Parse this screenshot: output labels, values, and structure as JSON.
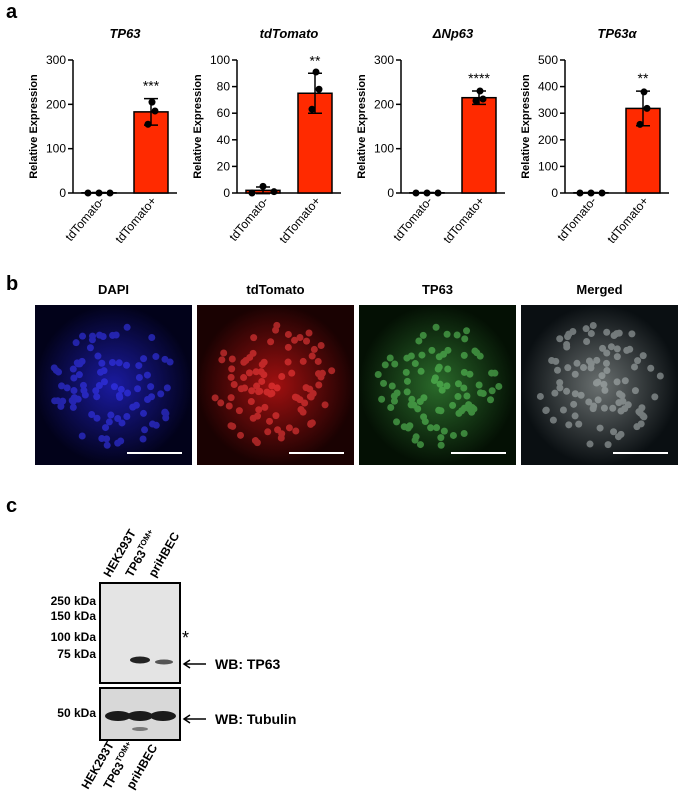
{
  "chart_data": [
    {
      "type": "bar",
      "title": "TP63",
      "ylabel": "Relative Expression",
      "categories": [
        "tdTomato-",
        "tdTomato+"
      ],
      "values": [
        0.5,
        183
      ],
      "errors": [
        0.5,
        30
      ],
      "points": [
        [
          0,
          0,
          0
        ],
        [
          205,
          185,
          155
        ]
      ],
      "annotation": "***",
      "color": "#ff2a00",
      "ylim": [
        0,
        300
      ],
      "yticks": [
        0,
        100,
        200,
        300
      ]
    },
    {
      "type": "bar",
      "title": "tdTomato",
      "ylabel": "Relative Expression",
      "categories": [
        "tdTomato-",
        "tdTomato+"
      ],
      "values": [
        2,
        75
      ],
      "errors": [
        2.5,
        15
      ],
      "points": [
        [
          0,
          5,
          1
        ],
        [
          91,
          78,
          63
        ]
      ],
      "annotation": "**",
      "color": "#ff2a00",
      "ylim": [
        0,
        100
      ],
      "yticks": [
        0,
        20,
        40,
        60,
        80,
        100
      ]
    },
    {
      "type": "bar",
      "title": "ΔNp63",
      "ylabel": "Relative Expression",
      "categories": [
        "tdTomato-",
        "tdTomato+"
      ],
      "values": [
        0.5,
        215
      ],
      "errors": [
        0.5,
        15
      ],
      "points": [
        [
          0,
          0,
          0
        ],
        [
          230,
          212,
          208
        ]
      ],
      "annotation": "****",
      "color": "#ff2a00",
      "ylim": [
        0,
        300
      ],
      "yticks": [
        0,
        100,
        200,
        300
      ]
    },
    {
      "type": "bar",
      "title": "TP63α",
      "ylabel": "Relative Expression",
      "categories": [
        "tdTomato-",
        "tdTomato+"
      ],
      "values": [
        1,
        318
      ],
      "errors": [
        1,
        65
      ],
      "points": [
        [
          0,
          0,
          0
        ],
        [
          380,
          318,
          258
        ]
      ],
      "annotation": "**",
      "color": "#ff2a00",
      "ylim": [
        0,
        500
      ],
      "yticks": [
        0,
        100,
        200,
        300,
        400,
        500
      ]
    }
  ],
  "panels": {
    "a": "a",
    "b": "b",
    "c": "c"
  },
  "images": [
    "DAPI",
    "tdTomato",
    "TP63",
    "Merged"
  ],
  "blot": {
    "lanes": [
      {
        "label": "HEK293T"
      },
      {
        "label": "TP63",
        "sup": "TOM+"
      },
      {
        "label": "priHBEC"
      }
    ],
    "markers": [
      "250 kDa",
      "150 kDa",
      "100 kDa",
      "75 kDa",
      "50 kDa"
    ],
    "asterisk": "*",
    "wb": [
      "WB: TP63",
      "WB: Tubulin"
    ]
  }
}
